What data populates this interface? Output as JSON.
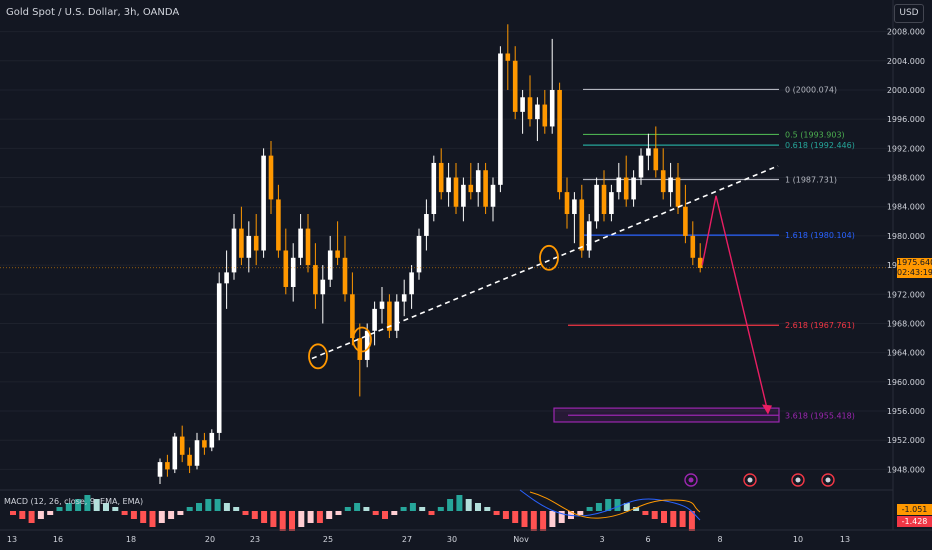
{
  "header": {
    "title": "Gold Spot / U.S. Dollar, 3h, OANDA",
    "currency": "USD"
  },
  "colors": {
    "bg": "#131722",
    "up": "#ffffff",
    "down": "#ff9800",
    "text": "#d1d4dc",
    "fib0": "#b2b5be",
    "fib05": "#4caf50",
    "fib0618": "#26a69a",
    "fib1": "#b2b5be",
    "fib1618": "#2962ff",
    "fib2618": "#f23645",
    "fib3618": "#9c27b0",
    "projection": "#e91e63"
  },
  "chart_data": {
    "type": "candlestick",
    "title": "Gold Spot / U.S. Dollar, 3h, OANDA",
    "y_ticks": [
      "2008.000",
      "2004.000",
      "2000.000",
      "1996.000",
      "1992.000",
      "1988.000",
      "1984.000",
      "1980.000",
      "1976.000",
      "1972.000",
      "1968.000",
      "1964.000",
      "1960.000",
      "1956.000",
      "1952.000",
      "1948.000"
    ],
    "ylim": [
      1946,
      2010
    ],
    "x_ticks": [
      "13",
      "16",
      "18",
      "20",
      "23",
      "25",
      "27",
      "30",
      "Nov",
      "3",
      "6",
      "8",
      "10",
      "13"
    ],
    "current_price": {
      "value": 1975.64,
      "label": "1975.640",
      "countdown": "02:43:19"
    },
    "candles": [
      [
        1947,
        1949.5,
        1946,
        1949
      ],
      [
        1949,
        1950,
        1947,
        1948
      ],
      [
        1948,
        1953,
        1947.5,
        1952.5
      ],
      [
        1952.5,
        1954,
        1949,
        1950
      ],
      [
        1950,
        1951,
        1947.5,
        1948.5
      ],
      [
        1948.5,
        1953,
        1948,
        1952
      ],
      [
        1952,
        1953,
        1950,
        1951
      ],
      [
        1951,
        1953.5,
        1950.5,
        1953
      ],
      [
        1953,
        1975,
        1952,
        1973.5
      ],
      [
        1973.5,
        1978,
        1970,
        1975
      ],
      [
        1975,
        1983,
        1974,
        1981
      ],
      [
        1981,
        1984,
        1976,
        1977
      ],
      [
        1977,
        1982,
        1975,
        1980
      ],
      [
        1980,
        1983,
        1976,
        1978
      ],
      [
        1978,
        1992,
        1977,
        1991
      ],
      [
        1991,
        1993,
        1983,
        1985
      ],
      [
        1985,
        1987,
        1977,
        1978
      ],
      [
        1978,
        1981,
        1972,
        1973
      ],
      [
        1973,
        1979,
        1971,
        1977
      ],
      [
        1977,
        1983,
        1976,
        1981
      ],
      [
        1981,
        1983,
        1975,
        1976
      ],
      [
        1976,
        1979,
        1970,
        1972
      ],
      [
        1972,
        1976,
        1968,
        1974
      ],
      [
        1974,
        1980,
        1973,
        1978
      ],
      [
        1978,
        1982,
        1976,
        1977
      ],
      [
        1977,
        1980,
        1971,
        1972
      ],
      [
        1972,
        1975,
        1965,
        1966
      ],
      [
        1966,
        1968,
        1958,
        1963
      ],
      [
        1963,
        1968,
        1962,
        1967
      ],
      [
        1967,
        1971,
        1965,
        1970
      ],
      [
        1970,
        1973,
        1968,
        1971
      ],
      [
        1971,
        1972,
        1966,
        1967
      ],
      [
        1967,
        1972,
        1966,
        1971
      ],
      [
        1971,
        1974,
        1969,
        1972
      ],
      [
        1972,
        1976,
        1970,
        1975
      ],
      [
        1975,
        1981,
        1974,
        1980
      ],
      [
        1980,
        1985,
        1978,
        1983
      ],
      [
        1983,
        1991,
        1982,
        1990
      ],
      [
        1990,
        1992,
        1985,
        1986
      ],
      [
        1986,
        1990,
        1984,
        1988
      ],
      [
        1988,
        1990,
        1983,
        1984
      ],
      [
        1984,
        1988,
        1982,
        1987
      ],
      [
        1987,
        1990,
        1985,
        1986
      ],
      [
        1986,
        1990,
        1984,
        1989
      ],
      [
        1989,
        1990,
        1983,
        1984
      ],
      [
        1984,
        1988,
        1982,
        1987
      ],
      [
        1987,
        2006,
        1986,
        2005
      ],
      [
        2005,
        2009,
        2000,
        2004
      ],
      [
        2004,
        2006,
        1996,
        1997
      ],
      [
        1997,
        2000,
        1994,
        1999
      ],
      [
        1999,
        2002,
        1995,
        1996
      ],
      [
        1996,
        1999,
        1993,
        1998
      ],
      [
        1998,
        2000,
        1994,
        1995
      ],
      [
        1995,
        2007,
        1994,
        2000
      ],
      [
        2000,
        2001,
        1985,
        1986
      ],
      [
        1986,
        1988,
        1981,
        1983
      ],
      [
        1983,
        1986,
        1979,
        1985
      ],
      [
        1985,
        1987,
        1977,
        1978
      ],
      [
        1978,
        1983,
        1977,
        1982
      ],
      [
        1982,
        1988,
        1981,
        1987
      ],
      [
        1987,
        1989,
        1982,
        1983
      ],
      [
        1983,
        1987,
        1982,
        1986
      ],
      [
        1986,
        1990,
        1985,
        1988
      ],
      [
        1988,
        1991,
        1984,
        1985
      ],
      [
        1985,
        1989,
        1984,
        1988
      ],
      [
        1988,
        1992,
        1987,
        1991
      ],
      [
        1991,
        1994,
        1989,
        1992
      ],
      [
        1992,
        1995,
        1988,
        1989
      ],
      [
        1989,
        1992,
        1985,
        1986
      ],
      [
        1986,
        1990,
        1984,
        1988
      ],
      [
        1988,
        1990,
        1983,
        1984
      ],
      [
        1984,
        1987,
        1979,
        1980
      ],
      [
        1980,
        1982,
        1976,
        1977
      ],
      [
        1977,
        1979,
        1975,
        1975.6
      ]
    ],
    "fib_levels": [
      {
        "ratio": "0",
        "label": "0 (2000.074)",
        "value": 2000.074
      },
      {
        "ratio": "0.5",
        "label": "0.5 (1993.903)",
        "value": 1993.903
      },
      {
        "ratio": "0.618",
        "label": "0.618 (1992.446)",
        "value": 1992.446
      },
      {
        "ratio": "1",
        "label": "1 (1987.731)",
        "value": 1987.731
      },
      {
        "ratio": "1.618",
        "label": "1.618 (1980.104)",
        "value": 1980.104
      },
      {
        "ratio": "2.618",
        "label": "2.618 (1967.761)",
        "value": 1967.761
      },
      {
        "ratio": "3.618",
        "label": "3.618 (1955.418)",
        "value": 1955.418
      }
    ],
    "target_zone": [
      1954.5,
      1956.4
    ],
    "macd": {
      "label": "MACD (12, 26, close, 9, EMA, EMA)",
      "values": {
        "macd": "-1.051",
        "signal": "-1.428"
      },
      "histogram": [
        -1,
        -2,
        -3,
        -2,
        -1,
        1,
        2,
        3,
        4,
        3,
        2,
        1,
        -1,
        -2,
        -3,
        -4,
        -3,
        -2,
        -1,
        1,
        2,
        3,
        3,
        2,
        1,
        -1,
        -2,
        -3,
        -4,
        -5,
        -5,
        -4,
        -3,
        -3,
        -2,
        -1,
        1,
        2,
        1,
        -1,
        -2,
        -1,
        1,
        2,
        1,
        -1,
        1,
        3,
        4,
        3,
        2,
        1,
        -1,
        -2,
        -3,
        -4,
        -5,
        -5,
        -4,
        -3,
        -2,
        -1,
        1,
        2,
        3,
        3,
        2,
        1,
        -1,
        -2,
        -3,
        -4,
        -4,
        -5
      ]
    }
  }
}
